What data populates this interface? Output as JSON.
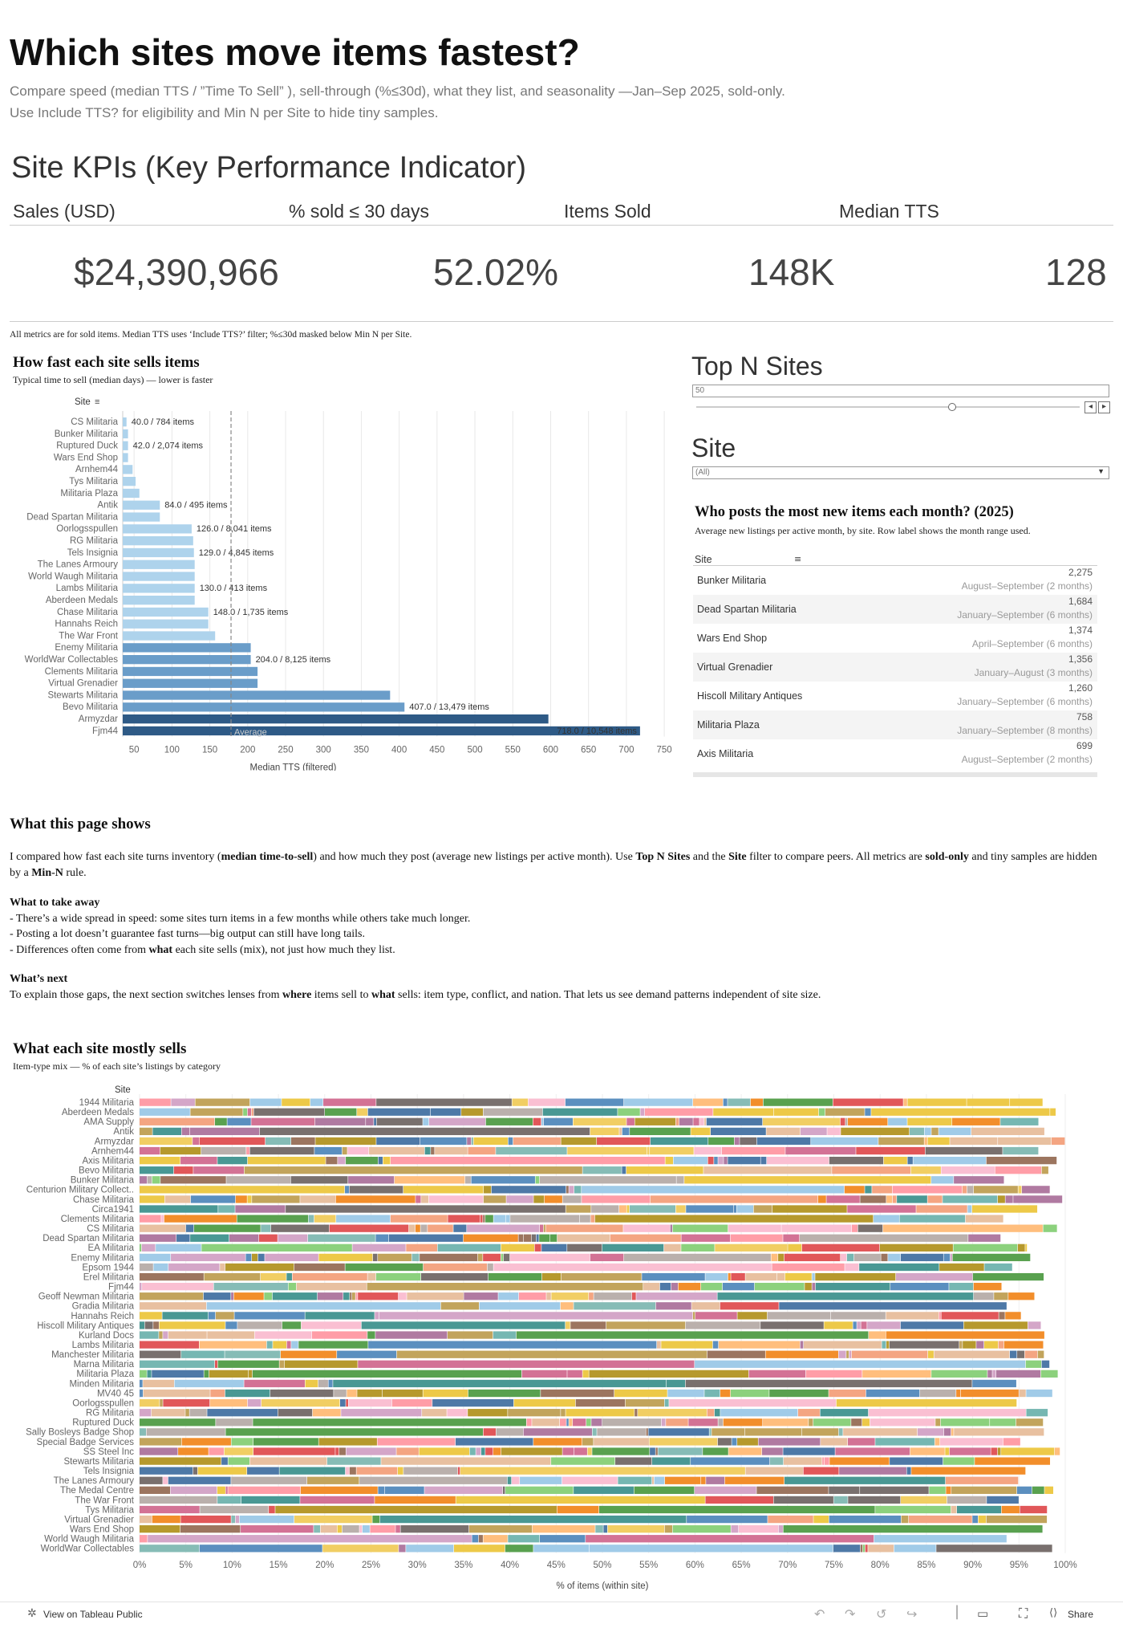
{
  "page": {
    "title": "Which sites move items fastest?",
    "subtitle_line1": "Compare speed (median TTS / ”Time To Sell” ), sell-through (%≤30d), what they list, and seasonality —Jan–Sep 2025, sold-only.",
    "subtitle_line2": "Use Include TTS? for eligibility and Min N per Site to hide tiny samples."
  },
  "kpis": {
    "heading": "Site KPIs (Key Performance Indicator)",
    "items": [
      {
        "label": "Sales (USD)",
        "value": "$24,390,966"
      },
      {
        "label": "% sold ≤ 30 days",
        "value": "52.02%"
      },
      {
        "label": "Items Sold",
        "value": "148K"
      },
      {
        "label": "Median TTS",
        "value": "128"
      }
    ],
    "note": "All metrics are for sold items. Median TTS uses ‘Include TTS?’ filter; %≤30d masked below Min N per Site."
  },
  "speed_chart": {
    "title": "How fast each site sells items",
    "subtitle": "Typical time to sell (median days) — lower is faster",
    "site_header": "Site",
    "average_label": "Average",
    "colors": {
      "light": "#aed3ec",
      "mid": "#6a9dc9",
      "dark": "#2e5a86",
      "avg_line": "#888888",
      "grid": "#e8e8e8"
    }
  },
  "chart_data": [
    {
      "type": "bar",
      "orientation": "horizontal",
      "title": "How fast each site sells items",
      "xlabel": "Median TTS (filtered)",
      "xlim": [
        35,
        770
      ],
      "xticks": [
        50,
        100,
        150,
        200,
        250,
        300,
        350,
        400,
        450,
        500,
        550,
        600,
        650,
        700,
        750
      ],
      "average": 178,
      "categories": [
        "CS Militaria",
        "Bunker Militaria",
        "Ruptured Duck",
        "Wars End Shop",
        "Arnhem44",
        "Tys Militaria",
        "Militaria Plaza",
        "Antik",
        "Dead Spartan Militaria",
        "Oorlogsspullen",
        "RG Militaria",
        "Tels Insignia",
        "The Lanes Armoury",
        "World Waugh Militaria",
        "Lambs Militaria",
        "Aberdeen Medals",
        "Chase Militaria",
        "Hannahs Reich",
        "The War Front",
        "Enemy Militaria",
        "WorldWar Collectables",
        "Clements Militaria",
        "Virtual Grenadier",
        "Stewarts Militaria",
        "Bevo Militaria",
        "Armyzdar",
        "Fjm44"
      ],
      "values": [
        40,
        42,
        42,
        42,
        48,
        52,
        57,
        84,
        84,
        126,
        128,
        129,
        130,
        130,
        130,
        130,
        148,
        148,
        157,
        204,
        204,
        213,
        213,
        388,
        407,
        597,
        718
      ],
      "data_labels": {
        "CS Militaria": "40.0 / 784 items",
        "Ruptured Duck": "42.0 / 2,074 items",
        "Antik": "84.0 / 495 items",
        "Oorlogsspullen": "126.0 / 8,041 items",
        "Tels Insignia": "129.0 / 4,845 items",
        "Lambs Militaria": "130.0 / 413 items",
        "Chase Militaria": "148.0 / 1,735 items",
        "WorldWar Collectables": "204.0 / 8,125 items",
        "Bevo Militaria": "407.0 / 13,479 items",
        "Fjm44": "718.0 / 10,548 items"
      }
    },
    {
      "type": "bar",
      "stacked": true,
      "orientation": "horizontal",
      "title": "What each site mostly sells",
      "subtitle": "Item-type mix — % of each site’s listings by category",
      "xlabel": "% of items (within site)",
      "xlim": [
        0,
        100
      ],
      "xticks": [
        "0%",
        "5%",
        "10%",
        "15%",
        "20%",
        "25%",
        "30%",
        "35%",
        "40%",
        "45%",
        "50%",
        "55%",
        "60%",
        "65%",
        "70%",
        "75%",
        "80%",
        "85%",
        "90%",
        "95%",
        "100%"
      ],
      "categories": [
        "1944 Militaria",
        "Aberdeen Medals",
        "AMA Supply",
        "Antik",
        "Armyzdar",
        "Arnhem44",
        "Axis Militaria",
        "Bevo Militaria",
        "Bunker Militaria",
        "Centurion Military Collect..",
        "Chase Militaria",
        "Circa1941",
        "Clements Militaria",
        "CS Militaria",
        "Dead Spartan Militaria",
        "EA Militaria",
        "Enemy Militaria",
        "Epsom 1944",
        "Erel Militaria",
        "Fjm44",
        "Geoff Newman Militaria",
        "Gradia Militaria",
        "Hannahs Reich",
        "Hiscoll Military Antiques",
        "Kurland Docs",
        "Lambs Militaria",
        "Manchester Militaria",
        "Marna Militaria",
        "Militaria Plaza",
        "Minden Militaria",
        "MV40 45",
        "Oorlogsspullen",
        "RG Militaria",
        "Ruptured Duck",
        "Sally Bosleys Badge Shop",
        "Special Badge Services",
        "SS Steel Inc",
        "Stewarts Militaria",
        "Tels Insignia",
        "The Lanes Armoury",
        "The Medal Centre",
        "The War Front",
        "Tys Militaria",
        "Virtual Grenadier",
        "Wars End Shop",
        "World Waugh Militaria",
        "WorldWar Collectables"
      ],
      "palette": [
        "#e15759",
        "#59a14f",
        "#edc948",
        "#4e79a7",
        "#f28e2b",
        "#ff9da7",
        "#76b7b2",
        "#b07aa1",
        "#9c755f",
        "#bab0ac",
        "#79706e",
        "#a0cbe8",
        "#ffbe7d",
        "#8cd17d",
        "#b6992d",
        "#f1ce63",
        "#499894",
        "#86bcb6",
        "#d37295",
        "#fabfd2",
        "#d4a6c8",
        "#e8c0a0",
        "#5b8fbf",
        "#c2a45c",
        "#f4a582"
      ]
    }
  ],
  "controls": {
    "top_n_title": "Top N Sites",
    "top_n_value": "50",
    "site_title": "Site",
    "site_value": "(All)"
  },
  "listings": {
    "title": "Who posts the most new items each month? (2025)",
    "subtitle": "Average new listings per active month, by site. Row label shows the month range used.",
    "site_header": "Site",
    "rows": [
      {
        "site": "Bunker Militaria",
        "value": "2,275",
        "range": "August–September (2 months)"
      },
      {
        "site": "Dead Spartan Militaria",
        "value": "1,684",
        "range": "January–September (6 months)"
      },
      {
        "site": "Wars End Shop",
        "value": "1,374",
        "range": "April–September (6 months)"
      },
      {
        "site": "Virtual Grenadier",
        "value": "1,356",
        "range": "January–August (3 months)"
      },
      {
        "site": "Hiscoll Military Antiques",
        "value": "1,260",
        "range": "January–September (6 months)"
      },
      {
        "site": "Militaria Plaza",
        "value": "758",
        "range": "January–September (8 months)"
      },
      {
        "site": "Axis Militaria",
        "value": "699",
        "range": "August–September (2 months)"
      }
    ]
  },
  "narrative": {
    "heading": "What this page shows",
    "intro_1": "I compared how fast each site turns inventory (",
    "intro_b1": "median time-to-sell",
    "intro_2": ") and how much they post (average new listings per active month). Use ",
    "intro_b2": "Top N Sites",
    "intro_3": " and the ",
    "intro_b3": "Site",
    "intro_4": " filter to compare peers. All metrics are ",
    "intro_b4": "sold-only",
    "intro_5": " and tiny samples are hidden by a ",
    "intro_b5": "Min-N",
    "intro_6": " rule.",
    "takeaway_heading": "What to take away",
    "takeaway_1": "- There’s a wide spread in speed: some sites turn items in a few months while others take much longer.",
    "takeaway_2": "- Posting a lot doesn’t guarantee fast turns—big output can still have long tails.",
    "takeaway_3a": "- Differences often come from ",
    "takeaway_3b": "what",
    "takeaway_3c": " each site sells (mix), not just how much they list.",
    "next_heading": "What’s next",
    "next_1": "To explain those gaps, the next section switches lenses from ",
    "next_b1": "where",
    "next_2": " items sell to ",
    "next_b2": "what",
    "next_3": " sells: item type, conflict, and nation. That lets us see demand patterns independent of site size."
  },
  "footer": {
    "view_label": "View on Tableau Public",
    "share_label": "Share"
  }
}
